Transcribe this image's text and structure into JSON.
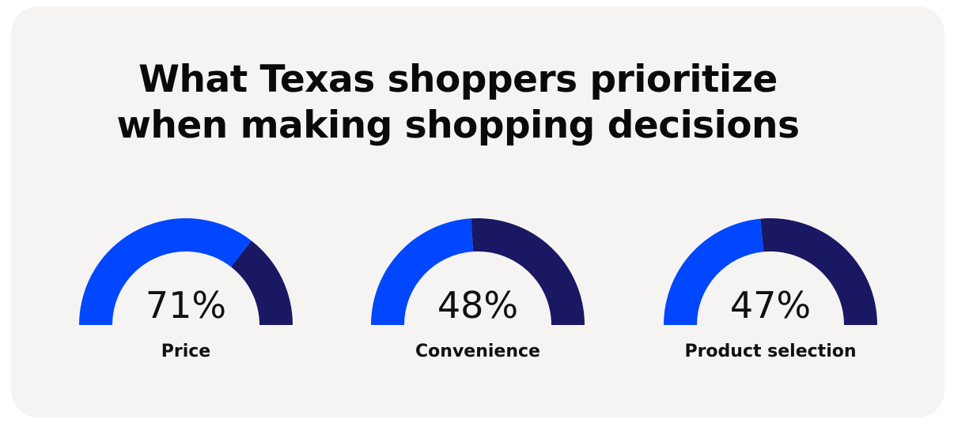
{
  "title_lines": [
    "What Texas shoppers prioritize",
    "when making shopping decisions"
  ],
  "colors": {
    "filled": "#0047FF",
    "remaining": "#1A1862",
    "card_background": "#F5F4F2"
  },
  "chart_data": {
    "type": "gauge",
    "title": "What Texas shoppers prioritize when making shopping decisions",
    "unit": "%",
    "range": [
      0,
      100
    ],
    "items": [
      {
        "label": "Price",
        "value": 71,
        "value_text": "71%"
      },
      {
        "label": "Convenience",
        "value": 48,
        "value_text": "48%"
      },
      {
        "label": "Product selection",
        "value": 47,
        "value_text": "47%"
      }
    ]
  }
}
